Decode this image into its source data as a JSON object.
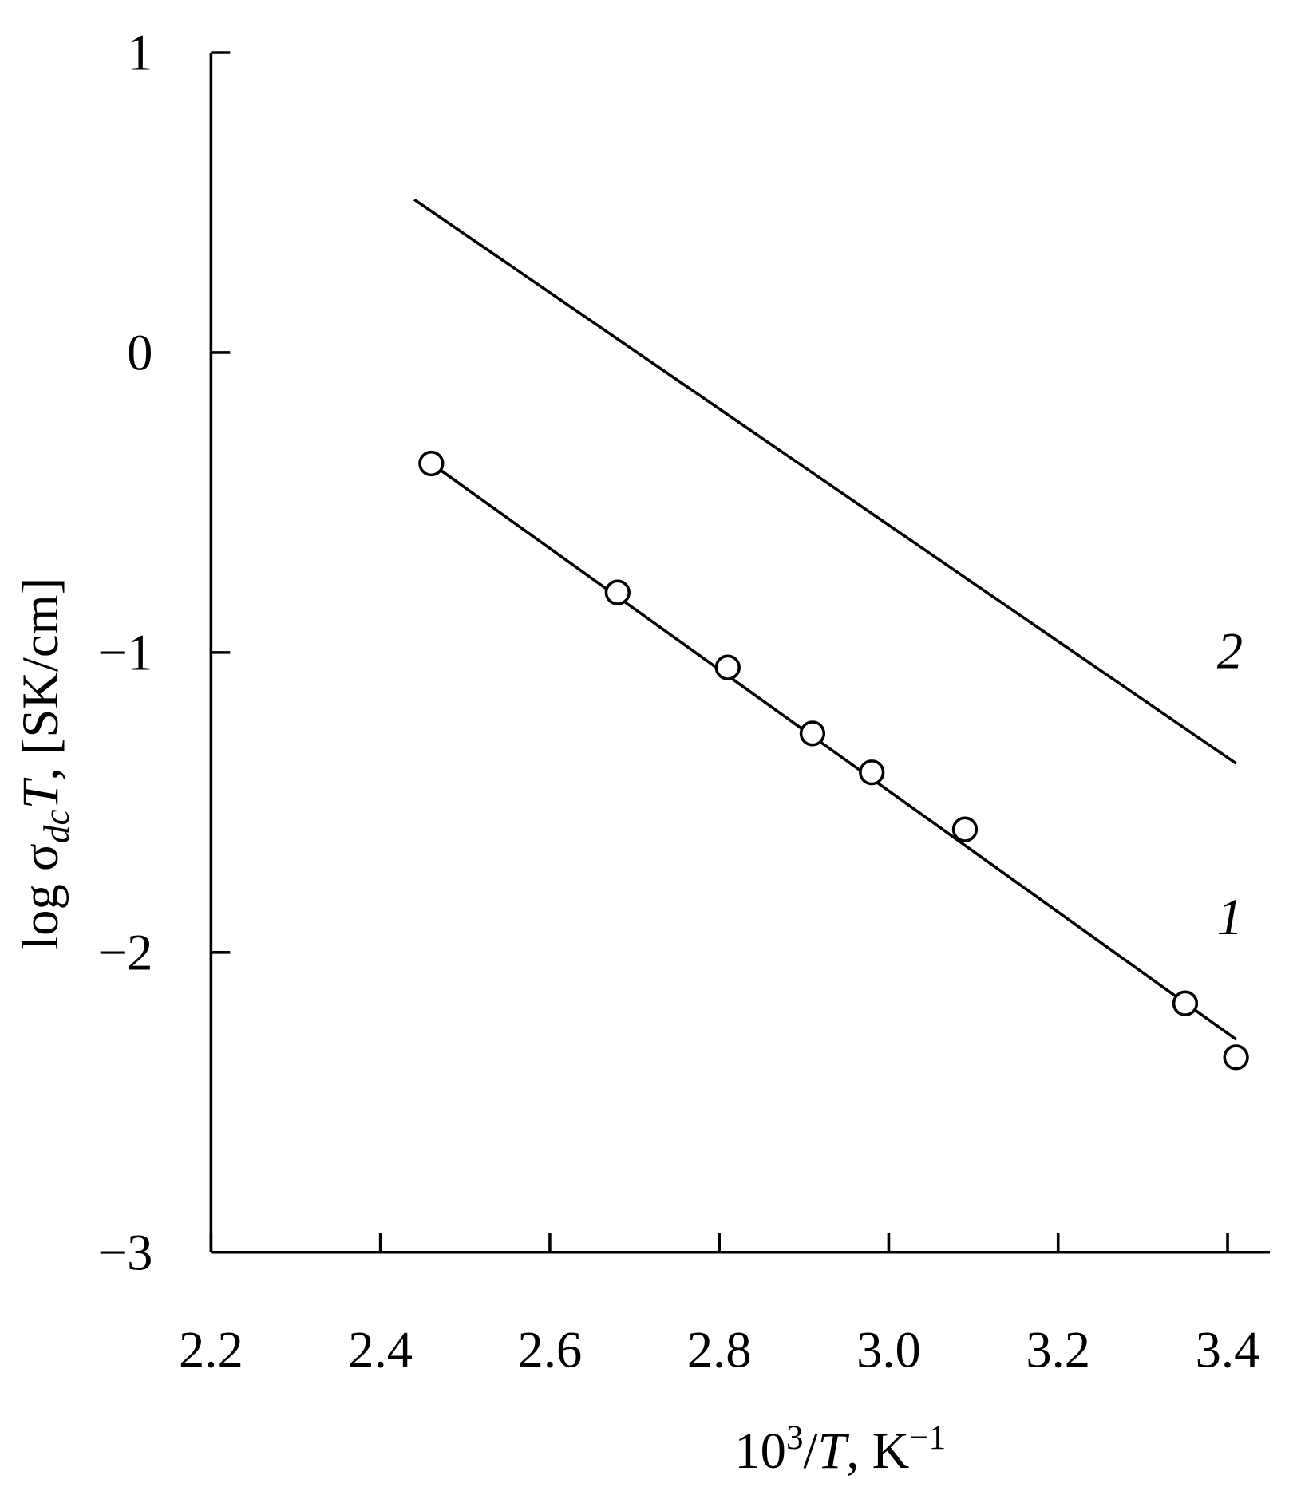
{
  "chart_data": {
    "type": "scatter",
    "x_label": [
      "10",
      "3",
      "/",
      "T",
      ", K",
      "−1"
    ],
    "y_label": [
      "log σ",
      "dc",
      "T",
      ", [SK/cm]"
    ],
    "xlim": [
      2.2,
      3.45
    ],
    "ylim": [
      -3,
      1
    ],
    "xticks": [
      2.2,
      2.4,
      2.6,
      2.8,
      {
        "value": 3.0,
        "label": "3.0"
      },
      3.2,
      3.4
    ],
    "yticks": [
      {
        "value": -3,
        "label": "−3"
      },
      {
        "value": -2,
        "label": "−2"
      },
      {
        "value": -1,
        "label": "−1"
      },
      0,
      1
    ],
    "color": "#000000",
    "series": [
      {
        "name": "1",
        "x": [
          2.46,
          2.68,
          2.81,
          2.91,
          2.98,
          3.09,
          3.35,
          3.41
        ],
        "values": [
          -0.37,
          -0.8,
          -1.05,
          -1.27,
          -1.4,
          -1.59,
          -2.17,
          -2.35
        ],
        "line_x": [
          2.46,
          3.41
        ],
        "line_values": [
          -0.37,
          -2.29
        ]
      },
      {
        "name": "2",
        "line_x": [
          2.44,
          3.41
        ],
        "line_values": [
          0.51,
          -1.37
        ]
      }
    ]
  }
}
